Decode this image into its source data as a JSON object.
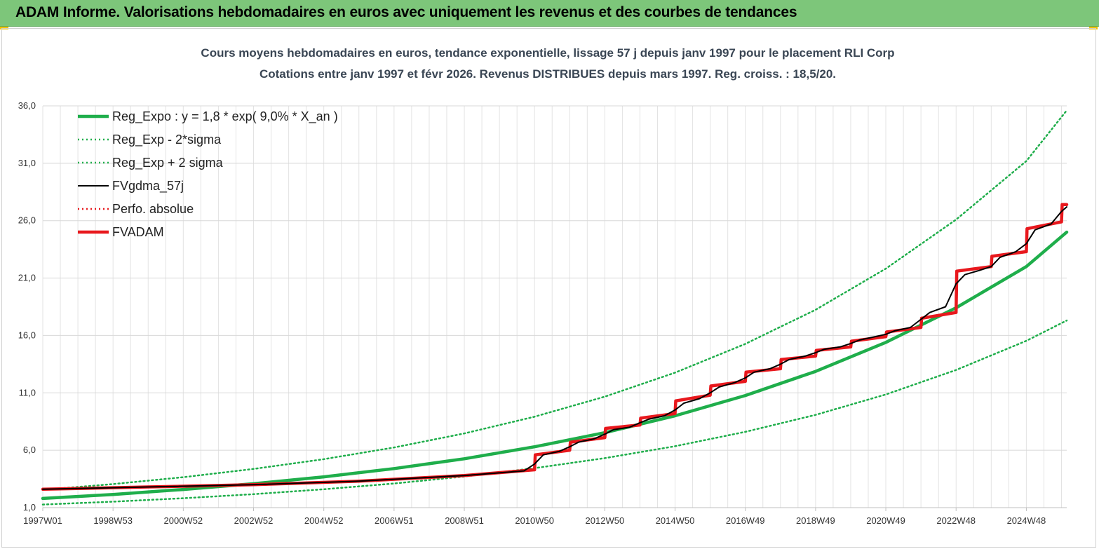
{
  "banner": {
    "title": "ADAM Informe. Valorisations hebdomadaires en euros avec uniquement les revenus et des courbes de tendances"
  },
  "colors": {
    "banner_bg": "#7dc67a",
    "green": "#1fae4b",
    "red": "#e8181d",
    "black": "#000000",
    "accent_corner": "#f2c200"
  },
  "chart_data": {
    "type": "line",
    "title": "Cours moyens  hebdomadaires en euros, tendance exponentielle, lissage 57 j depuis janv 1997 pour le placement RLI Corp",
    "subtitle": "Cotations entre janv 1997 et févr 2026. Revenus DISTRIBUES depuis mars 1997. Reg. croiss. : 18,5/20.",
    "xlabel": "",
    "ylabel": "",
    "ylim": [
      1.0,
      36.0
    ],
    "y_ticks": [
      "1,0",
      "6,0",
      "11,0",
      "16,0",
      "21,0",
      "26,0",
      "31,0",
      "36,0"
    ],
    "x_range": [
      1997.0,
      2026.15
    ],
    "x_ticks": [
      {
        "label": "1997W01",
        "x": 1997.0
      },
      {
        "label": "1998W53",
        "x": 1999.0
      },
      {
        "label": "2000W52",
        "x": 2001.0
      },
      {
        "label": "2002W52",
        "x": 2003.0
      },
      {
        "label": "2004W52",
        "x": 2005.0
      },
      {
        "label": "2006W51",
        "x": 2007.0
      },
      {
        "label": "2008W51",
        "x": 2009.0
      },
      {
        "label": "2010W50",
        "x": 2011.0
      },
      {
        "label": "2012W50",
        "x": 2013.0
      },
      {
        "label": "2014W50",
        "x": 2015.0
      },
      {
        "label": "2016W49",
        "x": 2017.0
      },
      {
        "label": "2018W49",
        "x": 2019.0
      },
      {
        "label": "2020W49",
        "x": 2021.0
      },
      {
        "label": "2022W48",
        "x": 2023.0
      },
      {
        "label": "2024W48",
        "x": 2025.0
      }
    ],
    "grid": true,
    "legend_position": "top-left",
    "series": [
      {
        "name": "Reg_Expo : y = 1,8 * exp( 9,0% *  X_an )",
        "style": "thick-solid",
        "color": "#1fae4b",
        "x": [
          1997.0,
          1999.0,
          2001.0,
          2003.0,
          2005.0,
          2007.0,
          2009.0,
          2011.0,
          2013.0,
          2015.0,
          2017.0,
          2019.0,
          2021.0,
          2023.0,
          2025.0,
          2026.15
        ],
        "y": [
          1.8,
          2.15,
          2.58,
          3.08,
          3.68,
          4.4,
          5.26,
          6.3,
          7.53,
          9.0,
          10.77,
          12.87,
          15.4,
          18.41,
          22.0,
          25.0
        ]
      },
      {
        "name": "Reg_Exp - 2*sigma",
        "style": "dotted",
        "color": "#1fae4b",
        "x": [
          1997.0,
          1999.0,
          2001.0,
          2003.0,
          2005.0,
          2007.0,
          2009.0,
          2011.0,
          2013.0,
          2015.0,
          2017.0,
          2019.0,
          2021.0,
          2023.0,
          2025.0,
          2026.15
        ],
        "y": [
          1.27,
          1.52,
          1.82,
          2.17,
          2.6,
          3.1,
          3.71,
          4.44,
          5.31,
          6.35,
          7.6,
          9.08,
          10.86,
          12.99,
          15.53,
          17.3
        ]
      },
      {
        "name": "Reg_Exp + 2 sigma",
        "style": "dotted",
        "color": "#1fae4b",
        "x": [
          1997.0,
          1999.0,
          2001.0,
          2003.0,
          2005.0,
          2007.0,
          2009.0,
          2011.0,
          2013.0,
          2015.0,
          2017.0,
          2019.0,
          2021.0,
          2023.0,
          2025.0,
          2026.15
        ],
        "y": [
          2.55,
          3.05,
          3.65,
          4.37,
          5.22,
          6.24,
          7.46,
          8.92,
          10.67,
          12.76,
          15.26,
          18.24,
          21.82,
          26.09,
          31.19,
          35.6
        ]
      },
      {
        "name": "FVgdma_57j",
        "style": "thin-solid",
        "color": "#000000",
        "x": [
          1997.0,
          2000.0,
          2003.0,
          2006.0,
          2009.0,
          2010.7,
          2011.0,
          2011.25,
          2011.7,
          2012.0,
          2012.25,
          2012.7,
          2013.0,
          2013.25,
          2013.7,
          2014.0,
          2014.25,
          2014.7,
          2015.0,
          2015.25,
          2015.7,
          2016.0,
          2016.25,
          2016.7,
          2017.0,
          2017.25,
          2017.7,
          2018.0,
          2018.25,
          2018.7,
          2019.0,
          2019.25,
          2019.7,
          2020.0,
          2020.25,
          2020.7,
          2021.0,
          2021.25,
          2021.7,
          2022.0,
          2022.25,
          2022.7,
          2023.0,
          2023.25,
          2023.7,
          2024.0,
          2024.25,
          2024.7,
          2025.0,
          2025.25,
          2025.7,
          2026.0,
          2026.15
        ],
        "y": [
          2.6,
          2.8,
          3.0,
          3.3,
          3.8,
          4.2,
          4.8,
          5.6,
          5.9,
          6.3,
          6.7,
          7.0,
          7.4,
          7.8,
          8.0,
          8.4,
          8.7,
          9.0,
          9.5,
          10.1,
          10.5,
          11.0,
          11.5,
          11.9,
          12.3,
          12.8,
          13.1,
          13.5,
          13.9,
          14.2,
          14.5,
          14.8,
          15.0,
          15.3,
          15.6,
          15.9,
          16.1,
          16.4,
          16.7,
          17.4,
          18.0,
          18.5,
          20.5,
          21.3,
          21.7,
          22.0,
          22.8,
          23.3,
          24.0,
          25.2,
          25.7,
          26.8,
          27.2
        ]
      },
      {
        "name": "Perfo. absolue",
        "style": "dotted",
        "color": "#e8181d",
        "x": [
          1997.0,
          2000.0,
          2003.0,
          2006.0,
          2009.0,
          2011.0,
          2011.02,
          2012.0,
          2012.02,
          2013.0,
          2013.02,
          2014.0,
          2014.02,
          2015.0,
          2015.02,
          2016.0,
          2016.02,
          2017.0,
          2017.02,
          2018.0,
          2018.02,
          2019.0,
          2019.02,
          2020.0,
          2020.02,
          2021.0,
          2021.02,
          2022.0,
          2022.02,
          2023.0,
          2023.02,
          2024.0,
          2024.02,
          2025.0,
          2025.02,
          2026.0,
          2026.02,
          2026.15
        ],
        "y": [
          2.6,
          2.8,
          3.0,
          3.3,
          3.8,
          4.3,
          5.6,
          6.0,
          6.7,
          7.1,
          7.9,
          8.2,
          8.8,
          9.2,
          10.3,
          10.8,
          11.6,
          12.0,
          12.8,
          13.1,
          13.9,
          14.2,
          14.7,
          15.0,
          15.5,
          15.9,
          16.3,
          16.7,
          17.5,
          18.0,
          21.6,
          22.0,
          22.9,
          23.3,
          25.3,
          25.9,
          27.4,
          27.4
        ]
      },
      {
        "name": "FVADAM",
        "style": "thick-solid",
        "color": "#e8181d",
        "x": [
          1997.0,
          2000.0,
          2003.0,
          2006.0,
          2009.0,
          2011.0,
          2011.02,
          2012.0,
          2012.02,
          2013.0,
          2013.02,
          2014.0,
          2014.02,
          2015.0,
          2015.02,
          2016.0,
          2016.02,
          2017.0,
          2017.02,
          2018.0,
          2018.02,
          2019.0,
          2019.02,
          2020.0,
          2020.02,
          2021.0,
          2021.02,
          2022.0,
          2022.02,
          2023.0,
          2023.02,
          2024.0,
          2024.02,
          2025.0,
          2025.02,
          2026.0,
          2026.02,
          2026.15
        ],
        "y": [
          2.6,
          2.8,
          3.0,
          3.3,
          3.8,
          4.3,
          5.6,
          6.0,
          6.7,
          7.1,
          7.9,
          8.2,
          8.8,
          9.2,
          10.3,
          10.8,
          11.6,
          12.0,
          12.8,
          13.1,
          13.9,
          14.2,
          14.7,
          15.0,
          15.5,
          15.9,
          16.3,
          16.7,
          17.5,
          18.0,
          21.6,
          22.0,
          22.9,
          23.3,
          25.3,
          25.9,
          27.4,
          27.4
        ]
      }
    ]
  }
}
